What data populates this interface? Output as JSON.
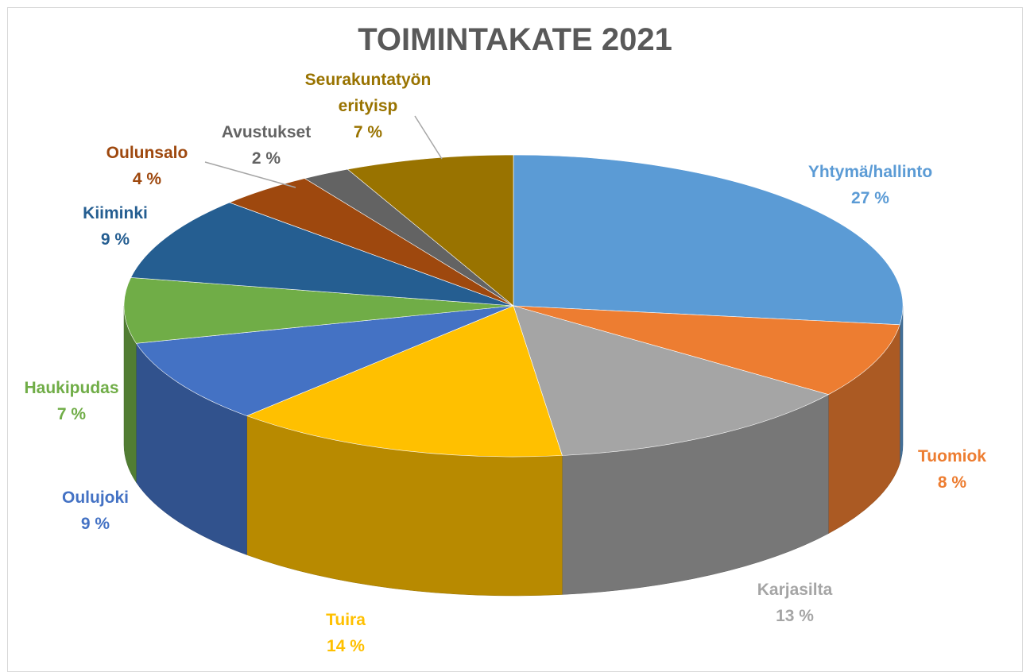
{
  "chart_data": {
    "type": "pie",
    "title": "TOIMINTAKATE 2021",
    "categories": [
      "Yhtymä/hallinto",
      "Tuomiok",
      "Karjasilta",
      "Tuira",
      "Oulujoki",
      "Haukipudas",
      "Kiiminki",
      "Oulunsalo",
      "Avustukset",
      "Seurakuntatyön erityisp"
    ],
    "values": [
      27,
      8,
      13,
      14,
      9,
      7,
      9,
      4,
      2,
      7
    ],
    "value_labels": [
      "27 %",
      "8 %",
      "13 %",
      "14 %",
      "9 %",
      "7 %",
      "9 %",
      "4 %",
      "2 %",
      "7 %"
    ],
    "colors": [
      "#5b9bd5",
      "#ed7d31",
      "#a5a5a5",
      "#ffc000",
      "#4472c4",
      "#70ad47",
      "#255e91",
      "#9e480e",
      "#636363",
      "#997300"
    ]
  }
}
